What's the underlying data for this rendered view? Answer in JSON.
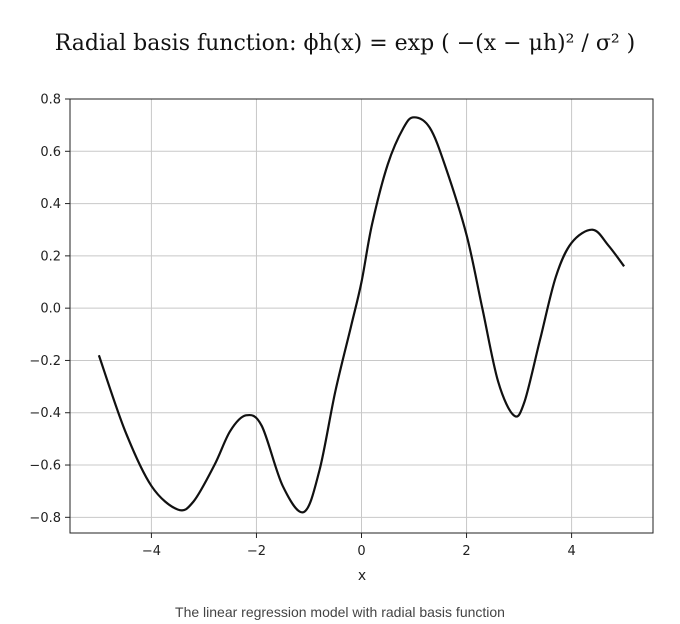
{
  "caption": "The linear regression model with radial basis function",
  "chart_data": {
    "type": "line",
    "title": "Radial basis function: ϕh(x) = exp ( −(x − μh)² / σ² )",
    "xlabel": "x",
    "ylabel": "",
    "xlim": [
      -5.55,
      5.55
    ],
    "ylim": [
      -0.86,
      0.8
    ],
    "grid": true,
    "x_ticks": [
      -4,
      -2,
      0,
      2,
      4
    ],
    "x_tick_labels": [
      "−4",
      "−2",
      "0",
      "2",
      "4"
    ],
    "y_ticks": [
      0.8,
      0.6,
      0.4,
      0.2,
      0.0,
      -0.2,
      -0.4,
      -0.6,
      -0.8
    ],
    "y_tick_labels": [
      "0.8",
      "0.6",
      "0.4",
      "0.2",
      "0.0",
      "−0.2",
      "−0.4",
      "−0.6",
      "−0.8"
    ],
    "line_color": "#111111",
    "series": [
      {
        "x": [
          -5.0,
          -4.5,
          -4.0,
          -3.5,
          -3.2,
          -2.8,
          -2.5,
          -2.2,
          -1.9,
          -1.5,
          -1.1,
          -0.8,
          -0.5,
          -0.2,
          0.0,
          0.2,
          0.5,
          0.8,
          1.0,
          1.3,
          1.6,
          2.0,
          2.3,
          2.6,
          2.9,
          3.1,
          3.4,
          3.7,
          4.0,
          4.4,
          4.7,
          5.0
        ],
        "y": [
          -0.18,
          -0.47,
          -0.68,
          -0.77,
          -0.74,
          -0.6,
          -0.47,
          -0.41,
          -0.45,
          -0.68,
          -0.78,
          -0.62,
          -0.32,
          -0.07,
          0.1,
          0.32,
          0.55,
          0.69,
          0.73,
          0.69,
          0.54,
          0.28,
          0.0,
          -0.28,
          -0.41,
          -0.36,
          -0.12,
          0.12,
          0.25,
          0.3,
          0.24,
          0.16
        ]
      }
    ]
  }
}
